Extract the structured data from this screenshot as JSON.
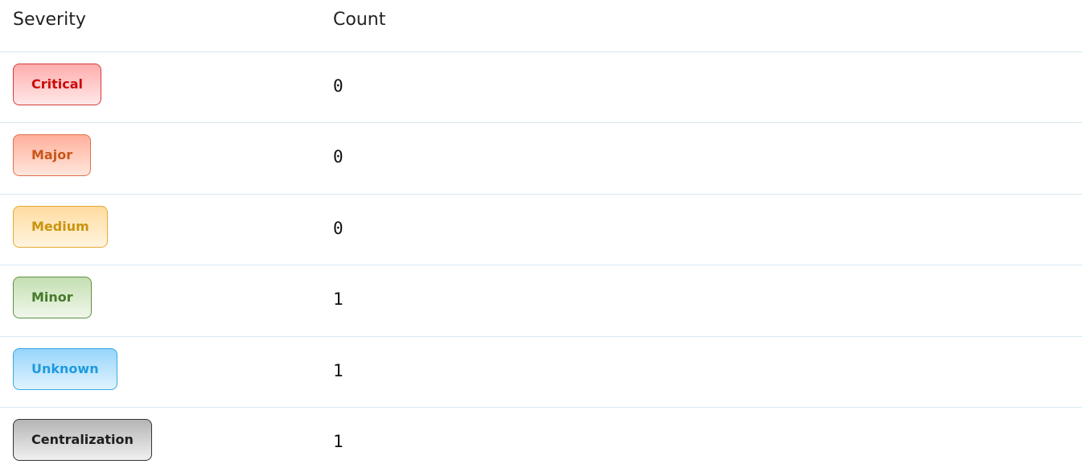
{
  "table": {
    "headers": [
      "Severity",
      "Count"
    ],
    "rows": [
      [
        "Critical",
        0
      ],
      [
        "Major",
        0
      ],
      [
        "Medium",
        0
      ],
      [
        "Minor",
        1
      ],
      [
        "Unknown",
        1
      ],
      [
        "Centralization",
        1
      ]
    ]
  }
}
